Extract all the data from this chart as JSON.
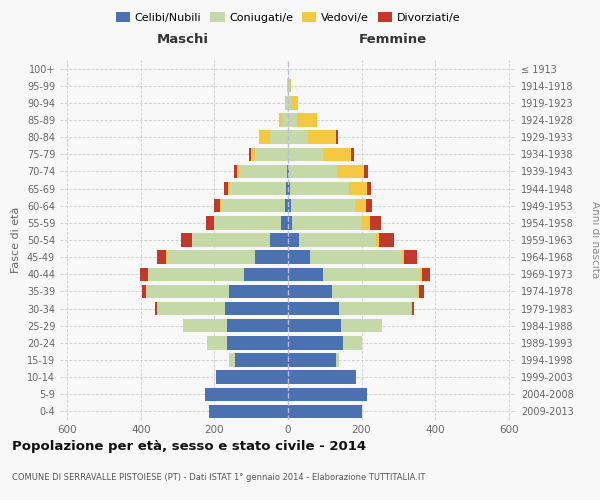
{
  "age_groups": [
    "0-4",
    "5-9",
    "10-14",
    "15-19",
    "20-24",
    "25-29",
    "30-34",
    "35-39",
    "40-44",
    "45-49",
    "50-54",
    "55-59",
    "60-64",
    "65-69",
    "70-74",
    "75-79",
    "80-84",
    "85-89",
    "90-94",
    "95-99",
    "100+"
  ],
  "birth_years": [
    "2009-2013",
    "2004-2008",
    "1999-2003",
    "1994-1998",
    "1989-1993",
    "1984-1988",
    "1979-1983",
    "1974-1978",
    "1969-1973",
    "1964-1968",
    "1959-1963",
    "1954-1958",
    "1949-1953",
    "1944-1948",
    "1939-1943",
    "1934-1938",
    "1929-1933",
    "1924-1928",
    "1919-1923",
    "1914-1918",
    "≤ 1913"
  ],
  "male": {
    "celibi": [
      215,
      225,
      195,
      145,
      165,
      165,
      170,
      160,
      120,
      90,
      50,
      20,
      8,
      5,
      3,
      0,
      0,
      0,
      0,
      0,
      0
    ],
    "coniugati": [
      0,
      0,
      0,
      15,
      55,
      120,
      185,
      225,
      260,
      240,
      210,
      180,
      175,
      155,
      130,
      90,
      50,
      15,
      5,
      2,
      0
    ],
    "vedovi": [
      0,
      0,
      0,
      0,
      0,
      0,
      2,
      2,
      2,
      2,
      2,
      2,
      2,
      3,
      5,
      10,
      30,
      10,
      3,
      0,
      0
    ],
    "divorziati": [
      0,
      0,
      0,
      0,
      0,
      0,
      5,
      10,
      20,
      25,
      30,
      20,
      15,
      10,
      8,
      5,
      0,
      0,
      0,
      0,
      0
    ]
  },
  "female": {
    "nubili": [
      200,
      215,
      185,
      130,
      150,
      145,
      140,
      120,
      95,
      60,
      30,
      12,
      8,
      5,
      3,
      0,
      0,
      0,
      0,
      0,
      0
    ],
    "coniugate": [
      0,
      0,
      0,
      10,
      50,
      110,
      195,
      230,
      265,
      250,
      210,
      190,
      175,
      160,
      130,
      95,
      55,
      25,
      8,
      3,
      0
    ],
    "vedove": [
      0,
      0,
      0,
      0,
      0,
      0,
      2,
      5,
      5,
      5,
      8,
      20,
      30,
      50,
      75,
      75,
      75,
      55,
      20,
      5,
      0
    ],
    "divorziate": [
      0,
      0,
      0,
      0,
      0,
      0,
      5,
      15,
      20,
      35,
      40,
      30,
      15,
      10,
      10,
      10,
      5,
      0,
      0,
      0,
      0
    ]
  },
  "colors": {
    "celibi": "#4a72b0",
    "coniugati": "#c5d9a8",
    "vedovi": "#f5c842",
    "divorziati": "#c0392b"
  },
  "xlim": 620,
  "title": "Popolazione per età, sesso e stato civile - 2014",
  "subtitle": "COMUNE DI SERRAVALLE PISTOIESE (PT) - Dati ISTAT 1° gennaio 2014 - Elaborazione TUTTITALIA.IT",
  "ylabel": "Fasce di età",
  "ylabel_right": "Anni di nascita",
  "xlabel_left": "Maschi",
  "xlabel_right": "Femmine",
  "background_color": "#f8f8f8",
  "grid_color": "#cccccc"
}
